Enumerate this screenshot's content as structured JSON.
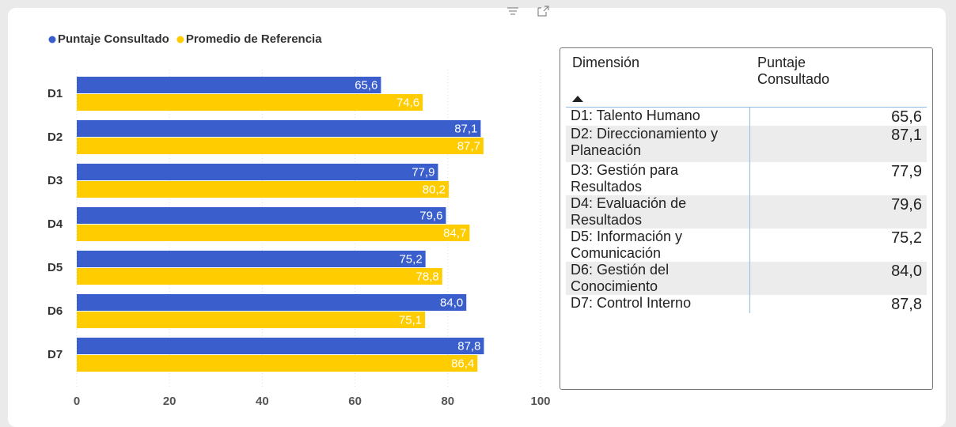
{
  "chart_data": {
    "type": "barh",
    "categories": [
      "D1",
      "D2",
      "D3",
      "D4",
      "D5",
      "D6",
      "D7"
    ],
    "series": [
      {
        "name": "Puntaje Consultado",
        "color": "#3a5fcd",
        "values": [
          65.6,
          87.1,
          77.9,
          79.6,
          75.2,
          84.0,
          87.8
        ],
        "value_labels": [
          "65,6",
          "87,1",
          "77,9",
          "79,6",
          "75,2",
          "84,0",
          "87,8"
        ]
      },
      {
        "name": "Promedio de Referencia",
        "color": "#ffcc00",
        "values": [
          74.6,
          87.7,
          80.2,
          84.7,
          78.8,
          75.1,
          86.4
        ],
        "value_labels": [
          "74,6",
          "87,7",
          "80,2",
          "84,7",
          "78,8",
          "75,1",
          "86,4"
        ]
      }
    ],
    "xlim": [
      0,
      100
    ],
    "xticks": [
      0,
      20,
      40,
      60,
      80,
      100
    ],
    "grid": true,
    "legend": "top-left"
  },
  "table": {
    "columns": [
      "Dimensión",
      "Puntaje Consultado"
    ],
    "rows": [
      [
        "D1: Talento Humano",
        "65,6"
      ],
      [
        "D2: Direccionamiento y Planeación",
        "87,1"
      ],
      [
        "D3: Gestión para Resultados",
        "77,9"
      ],
      [
        "D4: Evaluación de Resultados",
        "79,6"
      ],
      [
        "D5: Información y Comunicación",
        "75,2"
      ],
      [
        "D6: Gestión del Conocimiento",
        "84,0"
      ],
      [
        "D7: Control Interno",
        "87,8"
      ]
    ]
  }
}
